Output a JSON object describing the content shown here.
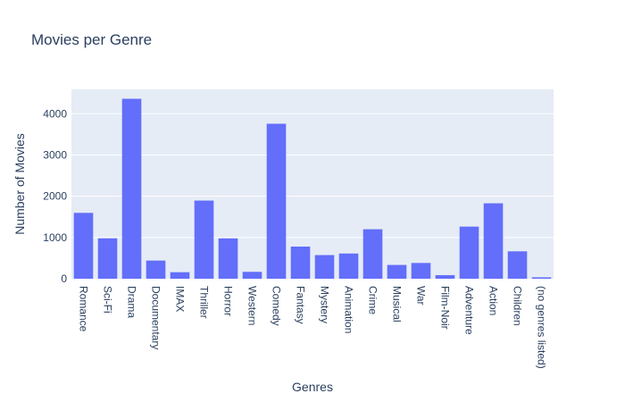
{
  "chart_data": {
    "type": "bar",
    "title": "Movies per Genre",
    "xlabel": "Genres",
    "ylabel": "Number of Movies",
    "categories": [
      "Romance",
      "Sci-Fi",
      "Drama",
      "Documentary",
      "IMAX",
      "Thriller",
      "Horror",
      "Western",
      "Comedy",
      "Fantasy",
      "Mystery",
      "Animation",
      "Crime",
      "Musical",
      "War",
      "Film-Noir",
      "Adventure",
      "Action",
      "Children",
      "(no genres listed)"
    ],
    "values": [
      1596,
      980,
      4361,
      440,
      158,
      1894,
      978,
      167,
      3756,
      779,
      573,
      611,
      1199,
      334,
      382,
      87,
      1263,
      1828,
      664,
      34
    ],
    "ylim": [
      0,
      4590
    ],
    "yticks": [
      0,
      1000,
      2000,
      3000,
      4000
    ],
    "ytick_labels": [
      "0",
      "1000",
      "2000",
      "3000",
      "4000"
    ],
    "grid": true,
    "colors": {
      "bar": "#636efa",
      "plot_bg": "#e5ecf6",
      "text": "#2a3f5f"
    }
  }
}
